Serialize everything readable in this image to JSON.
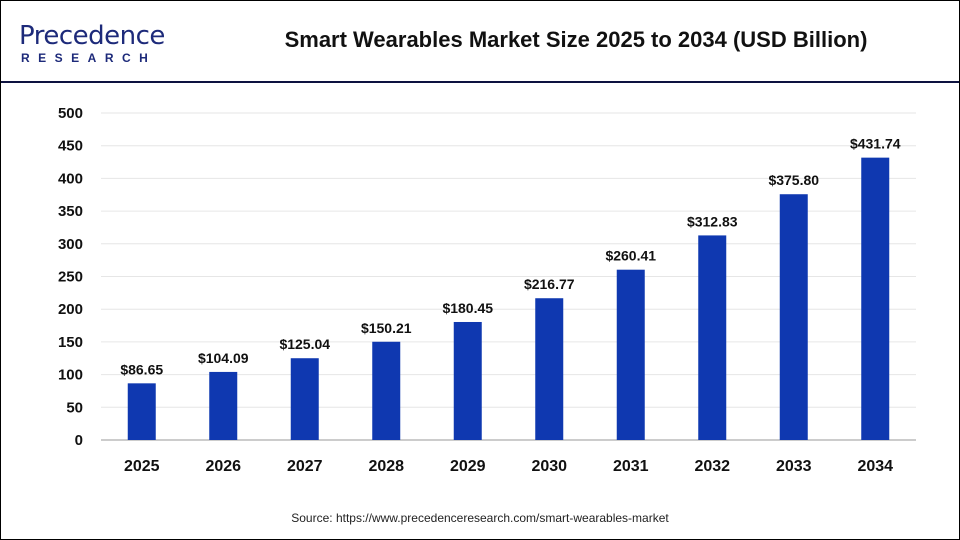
{
  "header": {
    "logo_text": "Precedence",
    "logo_sub": "RESEARCH",
    "title": "Smart Wearables Market Size 2025 to 2034 (USD Billion)"
  },
  "source": "Source: https://www.precedenceresearch.com/smart-wearables-market",
  "chart_data": {
    "type": "bar",
    "title": "Smart Wearables Market Size 2025 to 2034 (USD Billion)",
    "categories": [
      "2025",
      "2026",
      "2027",
      "2028",
      "2029",
      "2030",
      "2031",
      "2032",
      "2033",
      "2034"
    ],
    "values": [
      86.65,
      104.09,
      125.04,
      150.21,
      180.45,
      216.77,
      260.41,
      312.83,
      375.8,
      431.74
    ],
    "data_labels": [
      "$86.65",
      "$104.09",
      "$125.04",
      "$150.21",
      "$180.45",
      "$216.77",
      "$260.41",
      "$312.83",
      "$375.80",
      "$431.74"
    ],
    "yticks": [
      0,
      50,
      100,
      150,
      200,
      250,
      300,
      350,
      400,
      450,
      500
    ],
    "ylim": [
      0,
      500
    ],
    "grid": true,
    "bar_color": "#0f38b0",
    "xlabel": "",
    "ylabel": ""
  }
}
